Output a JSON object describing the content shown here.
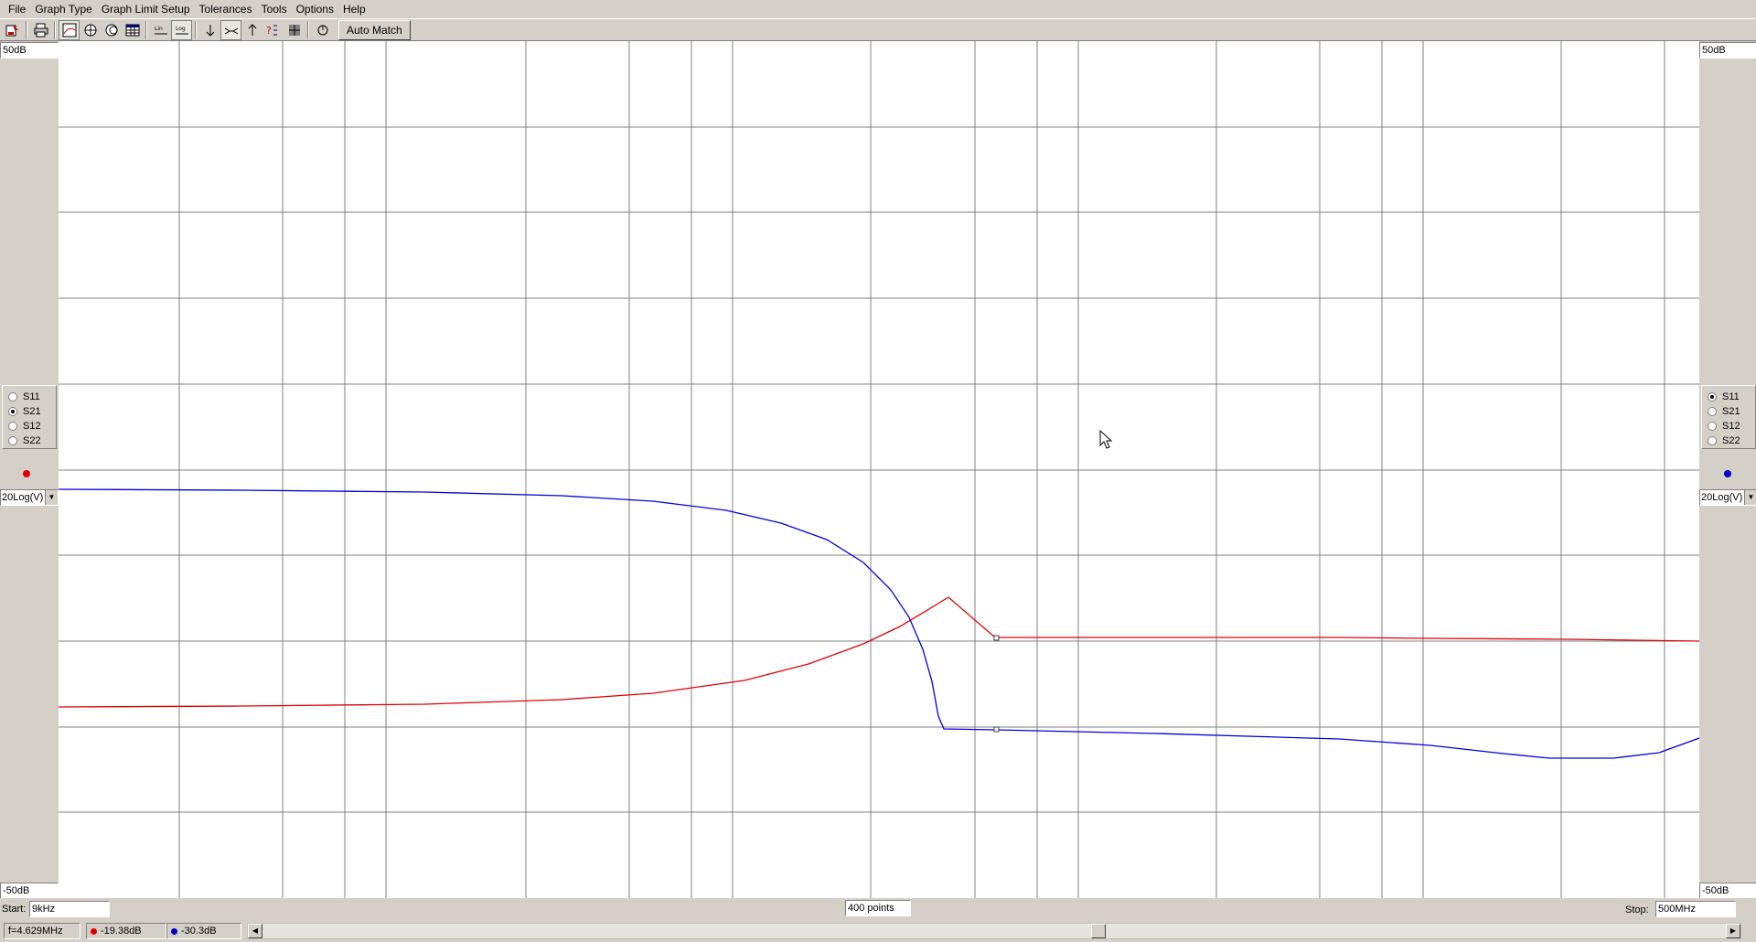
{
  "menu": [
    "File",
    "Graph Type",
    "Graph Limit Setup",
    "Tolerances",
    "Tools",
    "Options",
    "Help"
  ],
  "toolbar": {
    "auto_match_label": "Auto Match",
    "icons": [
      "open-file-icon",
      "print-icon",
      "rectangular-graph-icon",
      "polar-graph-icon",
      "smith-chart-icon",
      "table-icon",
      "linear-scale-icon",
      "log-scale-icon",
      "marker-down-icon",
      "marker-between-icon",
      "marker-up-icon",
      "help-marker-icon",
      "crosshair-icon",
      "rotate-icon"
    ],
    "log_glyph": "Log",
    "lin_glyph": "Lin"
  },
  "left_axis": {
    "top": "50dB",
    "bottom": "-50dB",
    "param_selected": "S21",
    "scale": "20Log(V)",
    "marker_color": "#e00000"
  },
  "right_axis": {
    "top": "50dB",
    "bottom": "-50dB",
    "param_selected": "S11",
    "scale": "20Log(V)",
    "marker_color": "#0000c8"
  },
  "params": [
    "S11",
    "S21",
    "S12",
    "S22"
  ],
  "sweep": {
    "start_label": "Start:",
    "start": "9kHz",
    "points": "400 points",
    "stop_label": "Stop:",
    "stop": "500MHz"
  },
  "status": {
    "freq": "f=4.629MHz",
    "red_value": "-19.38dB",
    "blue_value": "-30.3dB"
  },
  "colors": {
    "red_trace": "#e00000",
    "blue_trace": "#0000dd",
    "grid": "#808080"
  }
}
